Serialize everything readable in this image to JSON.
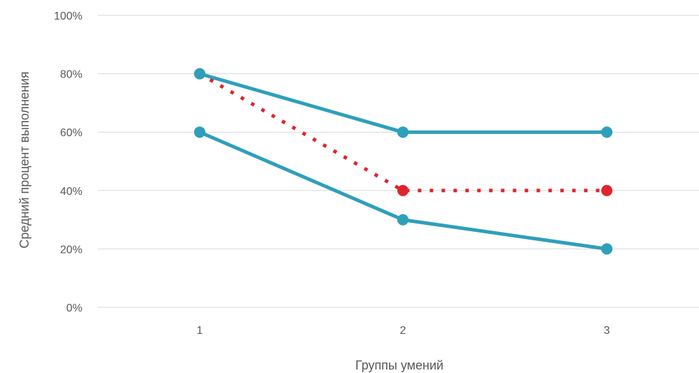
{
  "chart_data": {
    "type": "line",
    "title": "",
    "xlabel": "Группы умений",
    "ylabel": "Средний процент выполнения",
    "categories": [
      "1",
      "2",
      "3"
    ],
    "ylim": [
      0,
      100
    ],
    "yticks": [
      0,
      20,
      40,
      60,
      80,
      100
    ],
    "ytick_labels": [
      "0%",
      "20%",
      "40%",
      "60%",
      "80%",
      "100%"
    ],
    "grid": true,
    "legend": "none",
    "series": [
      {
        "values": [
          80,
          60,
          60
        ],
        "color": "#2E9FBB",
        "style": "solid"
      },
      {
        "values": [
          60,
          30,
          20
        ],
        "color": "#2E9FBB",
        "style": "solid"
      },
      {
        "values": [
          80,
          40,
          40
        ],
        "color": "#E0242E",
        "style": "dotted"
      }
    ]
  }
}
